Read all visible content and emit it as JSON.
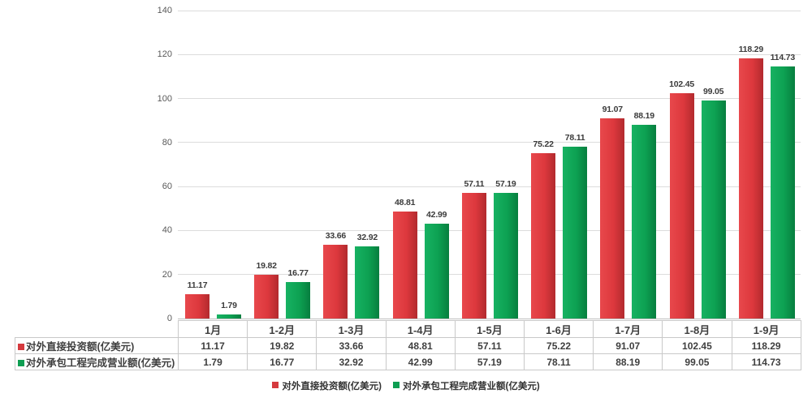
{
  "chart_data": {
    "type": "bar",
    "title": "",
    "categories": [
      "1月",
      "1-2月",
      "1-3月",
      "1-4月",
      "1-5月",
      "1-6月",
      "1-7月",
      "1-8月",
      "1-9月"
    ],
    "series": [
      {
        "name": "对外直接投资额(亿美元)",
        "color": "#d53a3e",
        "values": [
          11.17,
          19.82,
          33.66,
          48.81,
          57.11,
          75.22,
          91.07,
          102.45,
          118.29
        ],
        "labels": [
          "11.17",
          "19.82",
          "33.66",
          "48.81",
          "57.11",
          "75.22",
          "91.07",
          "102.45",
          "118.29"
        ]
      },
      {
        "name": "对外承包工程完成营业额(亿美元)",
        "color": "#0e9e52",
        "values": [
          1.79,
          16.77,
          32.92,
          42.99,
          57.19,
          78.11,
          88.19,
          99.05,
          114.73
        ],
        "labels": [
          "1.79",
          "16.77",
          "32.92",
          "42.99",
          "57.19",
          "78.11",
          "88.19",
          "99.05",
          "114.73"
        ]
      }
    ],
    "xlabel": "",
    "ylabel": "",
    "ylim": [
      0,
      140
    ],
    "yticks": [
      0,
      20,
      40,
      60,
      80,
      100,
      120,
      140
    ],
    "ytick_labels": [
      "0",
      "20",
      "40",
      "60",
      "80",
      "100",
      "120",
      "140"
    ],
    "grid": true,
    "data_labels": true,
    "data_table_shown": true,
    "legend_position": "bottom",
    "legend_entries": [
      "对外直接投资额(亿美元)",
      "对外承包工程完成营业额(亿美元)"
    ]
  },
  "colors": {
    "series1_red": "#d53a3e",
    "series2_green": "#0e9e52",
    "gridline": "#dcdcdc",
    "axis_line": "#bfbfbf",
    "table_border": "#c9c9c9",
    "tick_text": "#595959",
    "label_text": "#3b3b3b",
    "background": "#ffffff"
  }
}
